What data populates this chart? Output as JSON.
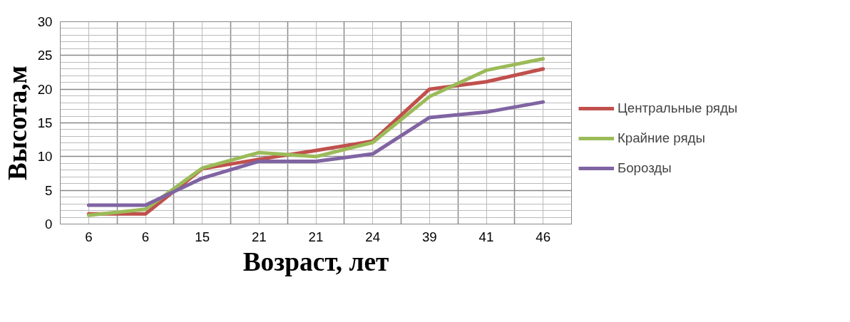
{
  "chart_data": {
    "type": "line",
    "xlabel": "Возраст, лет",
    "ylabel": "Высота,м",
    "categories": [
      "6",
      "6",
      "15",
      "21",
      "21",
      "24",
      "39",
      "41",
      "46"
    ],
    "series": [
      {
        "name": "Центральные ряды",
        "color": "#c0504d",
        "values": [
          1.5,
          1.5,
          8.2,
          9.6,
          10.9,
          12.3,
          20.0,
          21.1,
          23.0
        ]
      },
      {
        "name": "Крайние ряды",
        "color": "#9bbb59",
        "values": [
          1.3,
          2.2,
          8.3,
          10.6,
          10.0,
          12.1,
          18.9,
          22.8,
          24.5
        ]
      },
      {
        "name": "Борозды",
        "color": "#8064a2",
        "values": [
          2.8,
          2.8,
          6.8,
          9.3,
          9.3,
          10.4,
          15.8,
          16.6,
          18.1
        ]
      }
    ],
    "ylim": [
      0,
      30
    ],
    "yticks": [
      0,
      5,
      10,
      15,
      20,
      25,
      30
    ],
    "grid": true,
    "legend": "right",
    "marker": "none"
  }
}
